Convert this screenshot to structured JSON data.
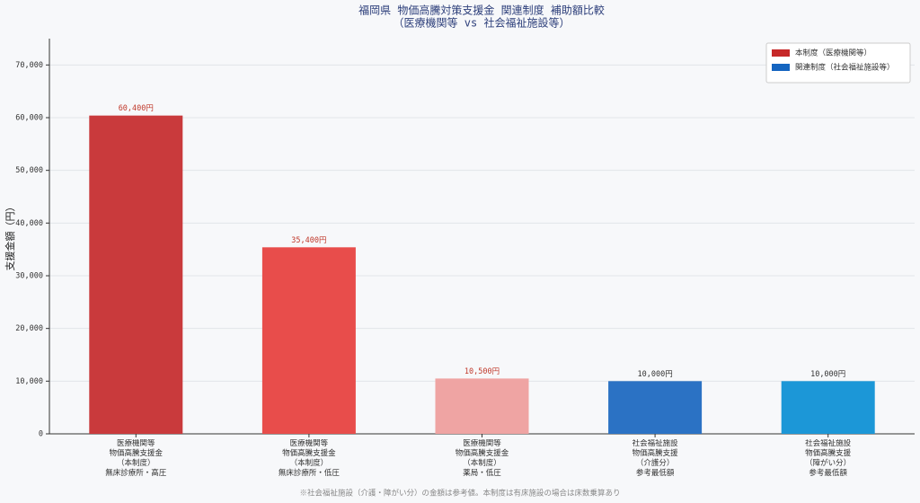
{
  "chart_data": {
    "type": "bar",
    "title": "福岡県 物価高騰対策支援金 関連制度 補助額比較",
    "subtitle": "（医療機関等 vs 社会福祉施設等）",
    "ylabel": "支援金額（円）",
    "footnote": "※社会福祉施設（介護・障がい分）の金額は参考値。本制度は有床施設の場合は床数乗算あり",
    "categories": [
      "医療機関等\n物価高騰支援金\n（本制度）\n無床診療所・高圧",
      "医療機関等\n物価高騰支援金\n（本制度）\n無床診療所・低圧",
      "医療機関等\n物価高騰支援金\n（本制度）\n薬局・低圧",
      "社会福祉施設\n物価高騰支援\n（介護分）\n参考最低額",
      "社会福祉施設\n物価高騰支援\n（障がい分）\n参考最低額"
    ],
    "values": [
      60400,
      35400,
      10500,
      10000,
      10000
    ],
    "value_labels": [
      "60,400円",
      "35,400円",
      "10,500円",
      "10,000円",
      "10,000円"
    ],
    "colors": [
      "#c93a3c",
      "#e84d4b",
      "#efa4a3",
      "#2b72c4",
      "#1c97d7"
    ],
    "label_colors": [
      "#c0392b",
      "#c0392b",
      "#c0392b",
      "#333333",
      "#333333"
    ],
    "legend": [
      {
        "label": "本制度（医療機関等）",
        "color": "#c62828"
      },
      {
        "label": "関連制度（社会福祉施設等）",
        "color": "#1565c0"
      }
    ],
    "legend_position": "upper right",
    "ylim": [
      0,
      75000
    ],
    "yticks": [
      0,
      {
        "value": 10000,
        "label": "10,000"
      },
      {
        "value": 20000,
        "label": "20,000"
      },
      {
        "value": 30000,
        "label": "30,000"
      },
      {
        "value": 40000,
        "label": "40,000"
      },
      {
        "value": 50000,
        "label": "50,000"
      },
      {
        "value": 60000,
        "label": "60,000"
      },
      {
        "value": 70000,
        "label": "70,000"
      }
    ],
    "grid": true
  }
}
